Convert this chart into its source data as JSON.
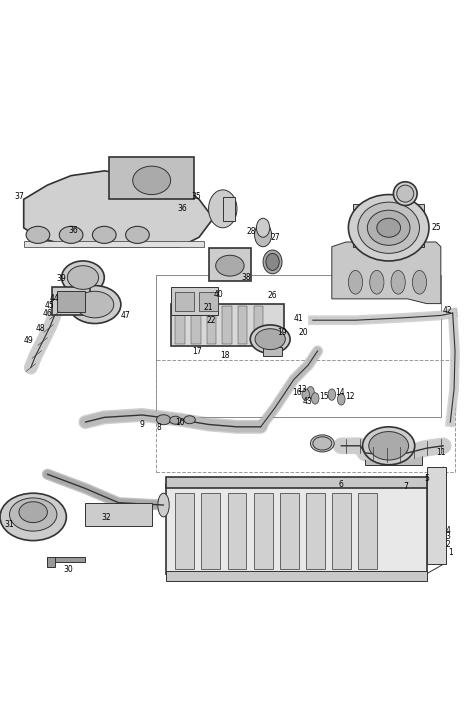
{
  "title": "",
  "background_color": "#ffffff",
  "line_color": "#333333",
  "label_color": "#000000",
  "fig_width": 4.74,
  "fig_height": 7.02,
  "dpi": 100,
  "sensors": [
    {
      "id": "12",
      "ox": 0.72,
      "oy": 0.398
    },
    {
      "id": "13",
      "ox": 0.655,
      "oy": 0.413
    },
    {
      "id": "14",
      "ox": 0.7,
      "oy": 0.408
    },
    {
      "id": "15",
      "ox": 0.665,
      "oy": 0.4
    },
    {
      "id": "16",
      "ox": 0.645,
      "oy": 0.408
    }
  ]
}
